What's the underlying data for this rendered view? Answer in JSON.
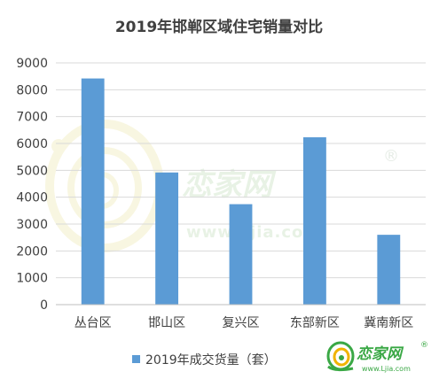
{
  "chart_data": {
    "type": "bar",
    "title": "2019年邯郸区域住宅销量对比",
    "categories": [
      "丛台区",
      "邯山区",
      "复兴区",
      "东部新区",
      "冀南新区"
    ],
    "series": [
      {
        "name": "2019年成交货量（套）",
        "values": [
          8420,
          4920,
          3740,
          6230,
          2600
        ]
      }
    ],
    "yticks": [
      "0",
      "1000",
      "2000",
      "3000",
      "4000",
      "5000",
      "6000",
      "7000",
      "8000",
      "9000"
    ],
    "ylim": [
      0,
      9000
    ],
    "grid": true,
    "legend": "bottom",
    "bar_color": "#5b9bd5"
  },
  "watermark": {
    "text": "恋家网",
    "url": "www.Ljia.com",
    "registered": "®"
  },
  "logo": {
    "text": "恋家网",
    "url": "www.Ljia.com",
    "registered": "®"
  }
}
